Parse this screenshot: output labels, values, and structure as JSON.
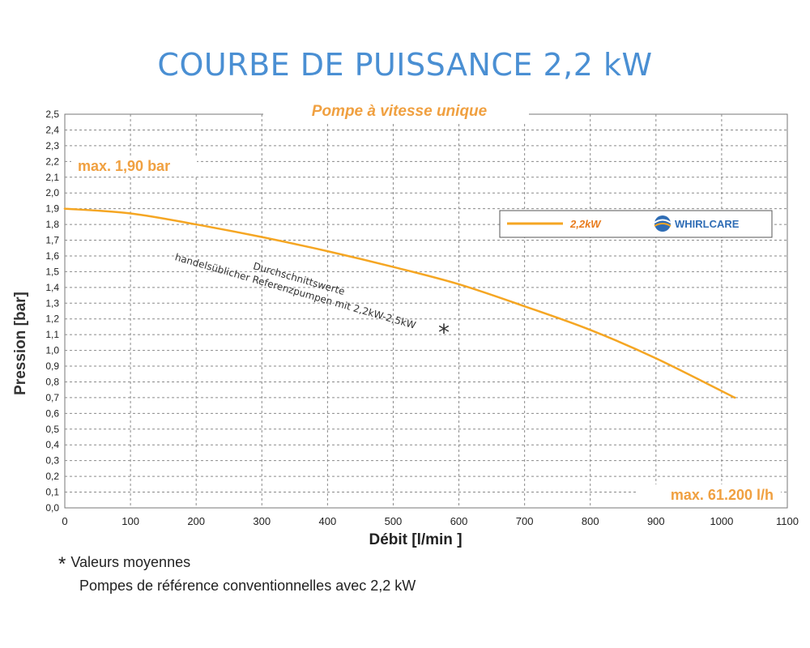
{
  "title": "COURBE DE PUISSANCE 2,2 kW",
  "subtitle": "Pompe à vitesse unique",
  "annotations": {
    "max_pressure": "max. 1,90 bar",
    "max_flow": "max. 61.200 l/h",
    "reference_line1": "Durchschnittswerte",
    "reference_line2": "handelsüblicher Referenzpumpen mit 2,2kW-2,5kW",
    "asterisk": "*"
  },
  "legend": {
    "label": "2,2kW",
    "brand": "WHIRLCARE"
  },
  "footnote": {
    "line1": "Valeurs moyennes",
    "line2": "Pompes de référence conventionnelles avec 2,2 kW"
  },
  "colors": {
    "title": "#4a8fd3",
    "curve": "#f5a623",
    "annotation": "#f0a040",
    "legend_text": "#e87b1c",
    "brand": "#2f6db5"
  },
  "chart_data": {
    "type": "line",
    "title": "COURBE DE PUISSANCE 2,2 kW",
    "subtitle": "Pompe à vitesse unique",
    "xlabel": "Débit [l/min ]",
    "ylabel": "Pression [bar]",
    "xlim": [
      0,
      1100
    ],
    "ylim": [
      0,
      2.5
    ],
    "grid": true,
    "legend_position": "top-right",
    "x_ticks": [
      "0",
      "100",
      "200",
      "300",
      "400",
      "500",
      "600",
      "700",
      "800",
      "900",
      "1000",
      "1100"
    ],
    "y_ticks": [
      "0,0",
      "0,1",
      "0,2",
      "0,3",
      "0,4",
      "0,5",
      "0,6",
      "0,7",
      "0,8",
      "0,9",
      "1,0",
      "1,1",
      "1,2",
      "1,3",
      "1,4",
      "1,5",
      "1,6",
      "1,7",
      "1,8",
      "1,9",
      "2,0",
      "2,1",
      "2,2",
      "2,3",
      "2,4",
      "2,5"
    ],
    "series": [
      {
        "name": "2,2kW",
        "x": [
          0,
          100,
          200,
          300,
          400,
          500,
          600,
          700,
          800,
          900,
          1020
        ],
        "y": [
          1.9,
          1.87,
          1.8,
          1.72,
          1.63,
          1.53,
          1.42,
          1.28,
          1.13,
          0.95,
          0.7
        ]
      }
    ]
  }
}
